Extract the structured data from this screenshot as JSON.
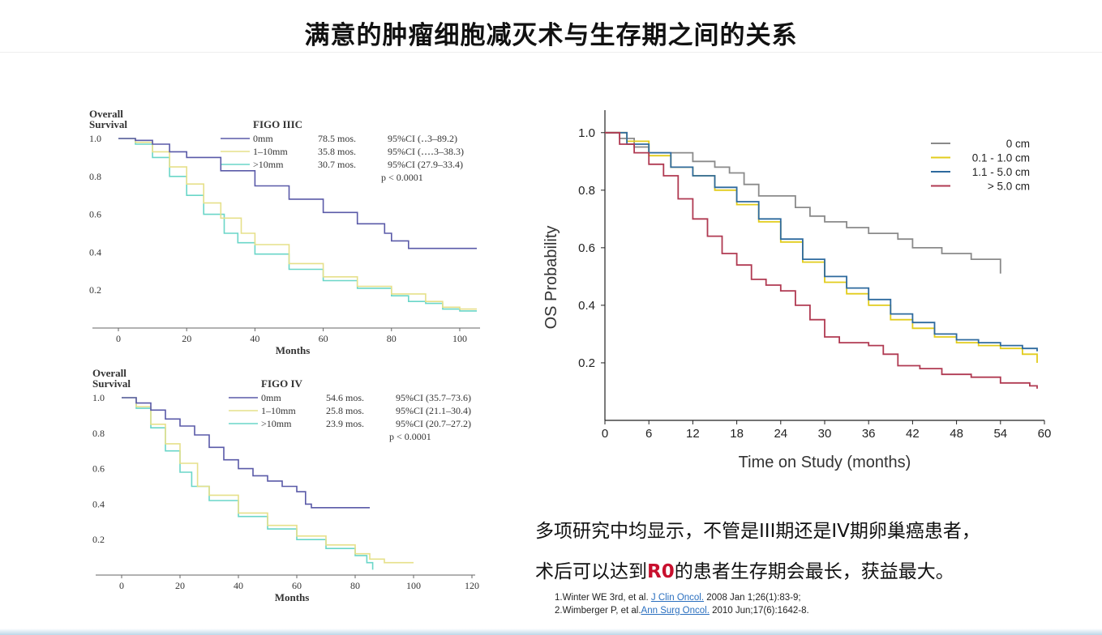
{
  "title": "满意的肿瘤细胞减灭术与生存期之间的关系",
  "conclusion": {
    "line1": "多项研究中均显示，不管是III期还是IV期卵巢癌患者，",
    "line2_before": "术后可以达到",
    "line2_highlight": "R0",
    "line2_after": "的患者生存期会最长，获益最大。"
  },
  "references": [
    {
      "prefix": "1.Winter WE 3rd, et al. ",
      "journal": "J Clin Oncol.",
      "suffix": " 2008 Jan 1;26(1):83-9;"
    },
    {
      "prefix": "2.Wimberger P, et al.",
      "journal": "Ann Surg Oncol.",
      "suffix": " 2010 Jun;17(6):1642-8."
    }
  ],
  "colors": {
    "purple": "#5a5aa8",
    "yellow": "#e6e08a",
    "teal": "#6ad6c8",
    "gray": "#8a8a8a",
    "gold": "#e2cc1c",
    "blue": "#2e6a9e",
    "red": "#b03a52"
  },
  "chart_data": [
    {
      "type": "line",
      "ylabel": "Overall Survival",
      "xlabel": "Months",
      "legend_title": "FIGO IIIC",
      "xlim": [
        0,
        105
      ],
      "ylim": [
        0,
        1.0
      ],
      "x_ticks": [
        0,
        20,
        40,
        60,
        80,
        100
      ],
      "y_ticks": [
        0.2,
        0.4,
        0.6,
        0.8,
        1.0
      ],
      "pvalue": "p < 0.0001",
      "series": [
        {
          "name": "0mm",
          "median": "78.5 mos.",
          "ci": "95%CI (‥3–89.2)",
          "color": "#5a5aa8",
          "x": [
            0,
            5,
            10,
            15,
            20,
            30,
            40,
            50,
            60,
            70,
            78,
            80,
            85,
            90,
            100,
            105
          ],
          "y": [
            1.0,
            0.99,
            0.97,
            0.93,
            0.9,
            0.83,
            0.75,
            0.68,
            0.61,
            0.55,
            0.5,
            0.46,
            0.42,
            0.42,
            0.42,
            0.42
          ]
        },
        {
          "name": "1–10mm",
          "median": "35.8 mos.",
          "ci": "95%CI (‥‥3–38.3)",
          "color": "#e6e08a",
          "x": [
            0,
            5,
            10,
            15,
            20,
            25,
            30,
            36,
            40,
            50,
            60,
            70,
            80,
            90,
            95,
            100,
            105
          ],
          "y": [
            1.0,
            0.98,
            0.93,
            0.85,
            0.76,
            0.66,
            0.58,
            0.5,
            0.44,
            0.34,
            0.27,
            0.22,
            0.18,
            0.14,
            0.11,
            0.1,
            0.1
          ]
        },
        {
          "name": ">10mm",
          "median": "30.7 mos.",
          "ci": "95%CI (27.9–33.4)",
          "color": "#6ad6c8",
          "x": [
            0,
            5,
            10,
            15,
            20,
            25,
            31,
            35,
            40,
            50,
            60,
            70,
            80,
            85,
            90,
            95,
            100,
            105
          ],
          "y": [
            1.0,
            0.97,
            0.9,
            0.8,
            0.7,
            0.6,
            0.5,
            0.45,
            0.39,
            0.31,
            0.25,
            0.21,
            0.17,
            0.14,
            0.13,
            0.1,
            0.09,
            0.09
          ]
        }
      ]
    },
    {
      "type": "line",
      "ylabel": "Overall Survival",
      "xlabel": "Months",
      "legend_title": "FIGO IV",
      "xlim": [
        0,
        120
      ],
      "ylim": [
        0,
        1.0
      ],
      "x_ticks": [
        0,
        20,
        40,
        60,
        80,
        100,
        120
      ],
      "y_ticks": [
        0.2,
        0.4,
        0.6,
        0.8,
        1.0
      ],
      "pvalue": "p < 0.0001",
      "series": [
        {
          "name": "0mm",
          "median": "54.6 mos.",
          "ci": "95%CI (35.7–73.6)",
          "color": "#5a5aa8",
          "x": [
            0,
            5,
            10,
            15,
            20,
            25,
            30,
            35,
            40,
            45,
            50,
            55,
            60,
            63,
            65,
            70,
            80,
            85
          ],
          "y": [
            1.0,
            0.97,
            0.93,
            0.88,
            0.84,
            0.79,
            0.72,
            0.65,
            0.6,
            0.56,
            0.53,
            0.5,
            0.47,
            0.4,
            0.38,
            0.38,
            0.38,
            0.38
          ]
        },
        {
          "name": "1–10mm",
          "median": "25.8 mos.",
          "ci": "95%CI (21.1–30.4)",
          "color": "#e6e08a",
          "x": [
            0,
            5,
            10,
            15,
            20,
            26,
            30,
            40,
            50,
            60,
            70,
            80,
            85,
            90,
            95,
            100
          ],
          "y": [
            1.0,
            0.95,
            0.85,
            0.74,
            0.63,
            0.5,
            0.45,
            0.35,
            0.28,
            0.22,
            0.17,
            0.12,
            0.09,
            0.07,
            0.07,
            0.07
          ]
        },
        {
          "name": ">10mm",
          "median": "23.9 mos.",
          "ci": "95%CI (20.7–27.2)",
          "color": "#6ad6c8",
          "x": [
            0,
            5,
            10,
            15,
            20,
            24,
            30,
            40,
            50,
            60,
            70,
            80,
            84,
            86
          ],
          "y": [
            1.0,
            0.94,
            0.83,
            0.7,
            0.58,
            0.5,
            0.42,
            0.33,
            0.26,
            0.2,
            0.15,
            0.11,
            0.07,
            0.03
          ]
        }
      ]
    },
    {
      "type": "line",
      "ylabel": "OS Probability",
      "xlabel": "Time on Study (months)",
      "xlim": [
        0,
        60
      ],
      "ylim": [
        0,
        1.05
      ],
      "x_ticks": [
        0,
        6,
        12,
        18,
        24,
        30,
        36,
        42,
        48,
        54,
        60
      ],
      "y_ticks": [
        0.2,
        0.4,
        0.6,
        0.8,
        1.0
      ],
      "series": [
        {
          "name": "0 cm",
          "color": "#8a8a8a",
          "x": [
            0,
            2,
            4,
            6,
            9,
            12,
            15,
            17,
            19,
            21,
            23,
            26,
            28,
            30,
            33,
            36,
            40,
            42,
            46,
            50,
            54
          ],
          "y": [
            1.0,
            0.98,
            0.95,
            0.93,
            0.93,
            0.9,
            0.88,
            0.86,
            0.82,
            0.78,
            0.78,
            0.74,
            0.71,
            0.69,
            0.67,
            0.65,
            0.63,
            0.6,
            0.58,
            0.56,
            0.51
          ]
        },
        {
          "name": "0.1 - 1.0 cm",
          "color": "#e2cc1c",
          "x": [
            0,
            3,
            6,
            9,
            12,
            15,
            18,
            21,
            24,
            27,
            30,
            33,
            36,
            39,
            42,
            45,
            48,
            51,
            54,
            57,
            59
          ],
          "y": [
            1.0,
            0.97,
            0.92,
            0.88,
            0.85,
            0.8,
            0.75,
            0.69,
            0.62,
            0.55,
            0.48,
            0.44,
            0.4,
            0.35,
            0.32,
            0.29,
            0.27,
            0.26,
            0.25,
            0.23,
            0.2
          ]
        },
        {
          "name": "1.1 - 5.0 cm",
          "color": "#2e6a9e",
          "x": [
            0,
            3,
            6,
            9,
            12,
            15,
            18,
            21,
            24,
            27,
            30,
            33,
            36,
            39,
            42,
            45,
            48,
            51,
            54,
            57,
            59
          ],
          "y": [
            1.0,
            0.96,
            0.93,
            0.88,
            0.85,
            0.81,
            0.76,
            0.7,
            0.63,
            0.56,
            0.5,
            0.46,
            0.42,
            0.37,
            0.34,
            0.3,
            0.28,
            0.27,
            0.26,
            0.25,
            0.24
          ]
        },
        {
          "name": "> 5.0 cm",
          "color": "#b03a52",
          "x": [
            0,
            2,
            4,
            6,
            8,
            10,
            12,
            14,
            16,
            18,
            20,
            22,
            24,
            26,
            28,
            30,
            32,
            34,
            36,
            38,
            40,
            43,
            46,
            50,
            54,
            58,
            59
          ],
          "y": [
            1.0,
            0.96,
            0.93,
            0.89,
            0.85,
            0.77,
            0.7,
            0.64,
            0.58,
            0.54,
            0.49,
            0.47,
            0.45,
            0.4,
            0.35,
            0.29,
            0.27,
            0.27,
            0.26,
            0.23,
            0.19,
            0.18,
            0.16,
            0.15,
            0.13,
            0.12,
            0.11
          ]
        }
      ]
    }
  ]
}
